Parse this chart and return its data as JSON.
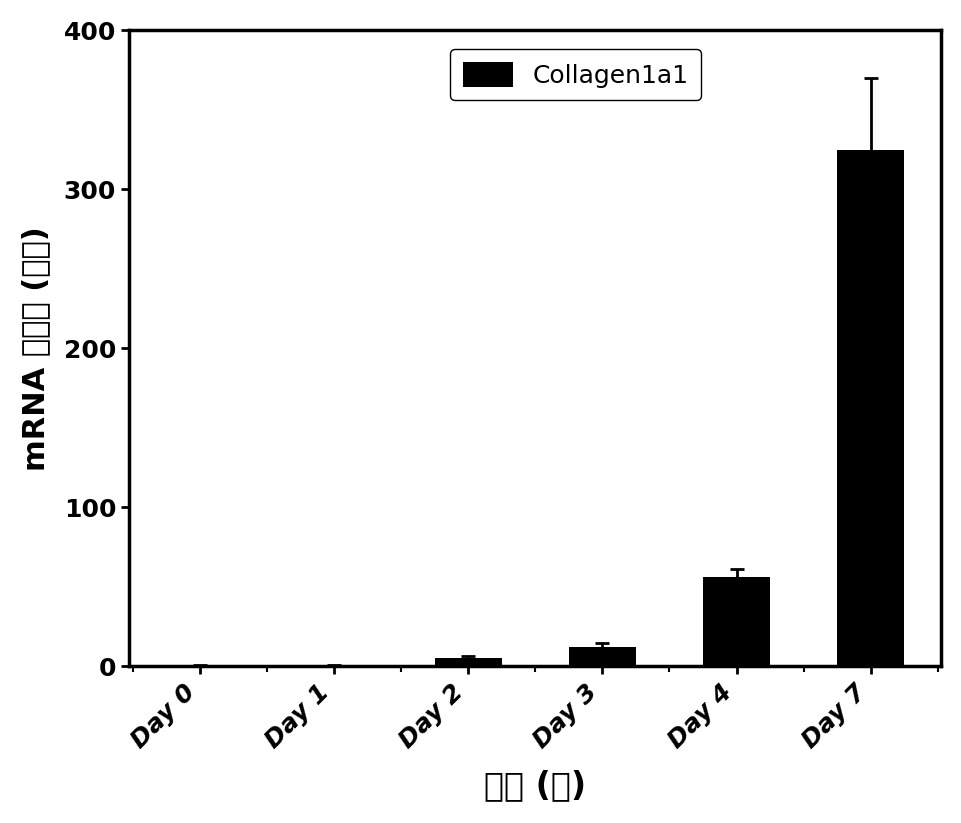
{
  "categories": [
    "Day 0",
    "Day 1",
    "Day 2",
    "Day 3",
    "Day 4",
    "Day 7"
  ],
  "values": [
    0.5,
    0.5,
    5.0,
    12.0,
    56.0,
    325.0
  ],
  "errors": [
    0.2,
    0.2,
    1.5,
    2.5,
    5.0,
    45.0
  ],
  "bar_color": "#000000",
  "xlabel": "时间 (天)",
  "ylabel": "mRNA 变化量 (倍数)",
  "ylim": [
    0,
    400
  ],
  "yticks": [
    0,
    100,
    200,
    300,
    400
  ],
  "legend_label": "Collagen1a1",
  "legend_fontsize": 18,
  "xlabel_fontsize": 24,
  "ylabel_fontsize": 22,
  "tick_fontsize": 18,
  "bar_width": 0.5,
  "background_color": "#ffffff"
}
